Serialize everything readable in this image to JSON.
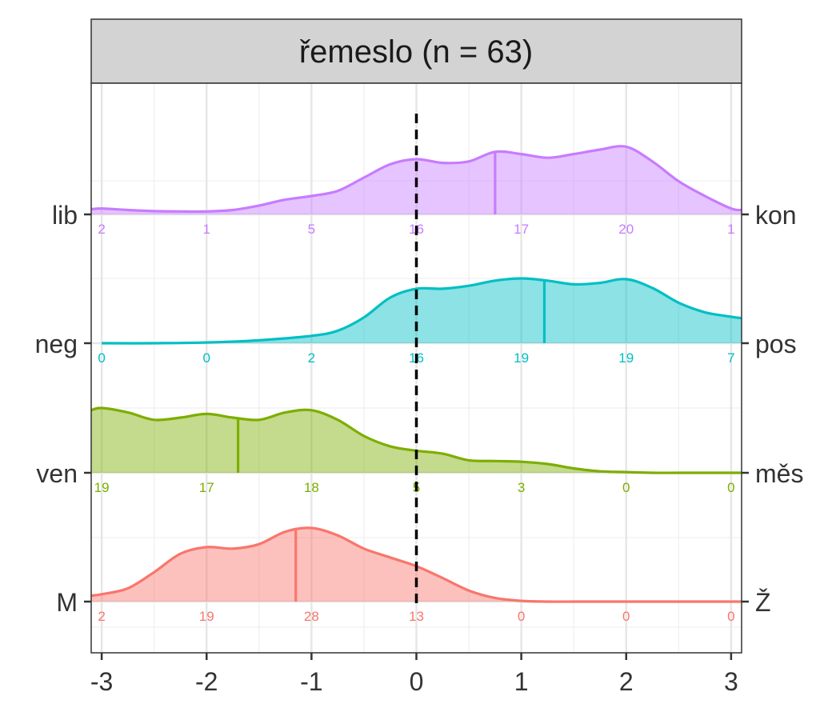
{
  "chart_data": {
    "type": "ridgeline-density",
    "title": "řemeslo (n = 63)",
    "xlim": [
      -3.1,
      3.1
    ],
    "x_ticks": [
      -3,
      -2,
      -1,
      0,
      1,
      2,
      3
    ],
    "x_tick_labels": [
      "-3",
      "-2",
      "-1",
      "0",
      "1",
      "2",
      "3"
    ],
    "reference_line_x": 0,
    "grid": true,
    "rows": [
      {
        "left_label": "lib",
        "right_label": "kon",
        "color": "#C77CFF",
        "mean": 0.75,
        "counts": [
          2,
          1,
          5,
          16,
          17,
          20,
          1
        ],
        "density_x": [
          -3.1,
          -3,
          -2.75,
          -2.5,
          -2.25,
          -2,
          -1.75,
          -1.5,
          -1.25,
          -1,
          -0.75,
          -0.5,
          -0.25,
          0,
          0.25,
          0.5,
          0.75,
          1,
          1.25,
          1.5,
          1.75,
          2,
          2.25,
          2.5,
          2.75,
          3,
          3.1
        ],
        "density_y": [
          0.07,
          0.08,
          0.06,
          0.045,
          0.04,
          0.04,
          0.06,
          0.12,
          0.2,
          0.25,
          0.32,
          0.5,
          0.68,
          0.75,
          0.7,
          0.72,
          0.85,
          0.82,
          0.77,
          0.82,
          0.88,
          0.92,
          0.72,
          0.45,
          0.25,
          0.08,
          0.06
        ]
      },
      {
        "left_label": "neg",
        "right_label": "pos",
        "color": "#00BFC4",
        "mean": 1.22,
        "counts": [
          0,
          0,
          2,
          16,
          19,
          19,
          7
        ],
        "density_x": [
          -3,
          -2.5,
          -2,
          -1.5,
          -1,
          -0.75,
          -0.5,
          -0.25,
          0,
          0.25,
          0.5,
          0.75,
          1,
          1.25,
          1.5,
          1.75,
          2,
          2.25,
          2.5,
          2.75,
          3,
          3.1
        ],
        "density_y": [
          0,
          0,
          0.01,
          0.04,
          0.1,
          0.17,
          0.35,
          0.62,
          0.74,
          0.74,
          0.78,
          0.85,
          0.88,
          0.85,
          0.8,
          0.82,
          0.87,
          0.75,
          0.55,
          0.42,
          0.36,
          0.34
        ]
      },
      {
        "left_label": "ven",
        "right_label": "měs",
        "color": "#7CAE00",
        "mean": -1.7,
        "counts": [
          19,
          17,
          18,
          5,
          3,
          0,
          0
        ],
        "density_x": [
          -3.1,
          -3,
          -2.75,
          -2.5,
          -2.25,
          -2,
          -1.75,
          -1.5,
          -1.25,
          -1,
          -0.75,
          -0.5,
          -0.25,
          0,
          0.25,
          0.5,
          0.75,
          1,
          1.25,
          1.5,
          1.75,
          2,
          2.25,
          2.5,
          2.75,
          3,
          3.1
        ],
        "density_y": [
          0.85,
          0.88,
          0.82,
          0.72,
          0.75,
          0.8,
          0.75,
          0.72,
          0.82,
          0.85,
          0.72,
          0.5,
          0.36,
          0.3,
          0.26,
          0.17,
          0.16,
          0.15,
          0.12,
          0.06,
          0.02,
          0.01,
          0,
          0,
          0,
          0,
          0
        ]
      },
      {
        "left_label": "M",
        "right_label": "Ž",
        "color": "#F8766D",
        "mean": -1.15,
        "counts": [
          2,
          19,
          28,
          13,
          0,
          0,
          0
        ],
        "density_x": [
          -3.1,
          -3,
          -2.75,
          -2.5,
          -2.25,
          -2,
          -1.75,
          -1.5,
          -1.25,
          -1,
          -0.75,
          -0.5,
          -0.25,
          0,
          0.25,
          0.5,
          0.75,
          1,
          1.25,
          1.5,
          2,
          2.5,
          3,
          3.1
        ],
        "density_y": [
          0.08,
          0.1,
          0.18,
          0.4,
          0.65,
          0.74,
          0.72,
          0.78,
          0.95,
          1.0,
          0.9,
          0.72,
          0.6,
          0.48,
          0.32,
          0.15,
          0.05,
          0.01,
          0,
          0,
          0,
          0,
          0,
          0
        ]
      }
    ]
  }
}
